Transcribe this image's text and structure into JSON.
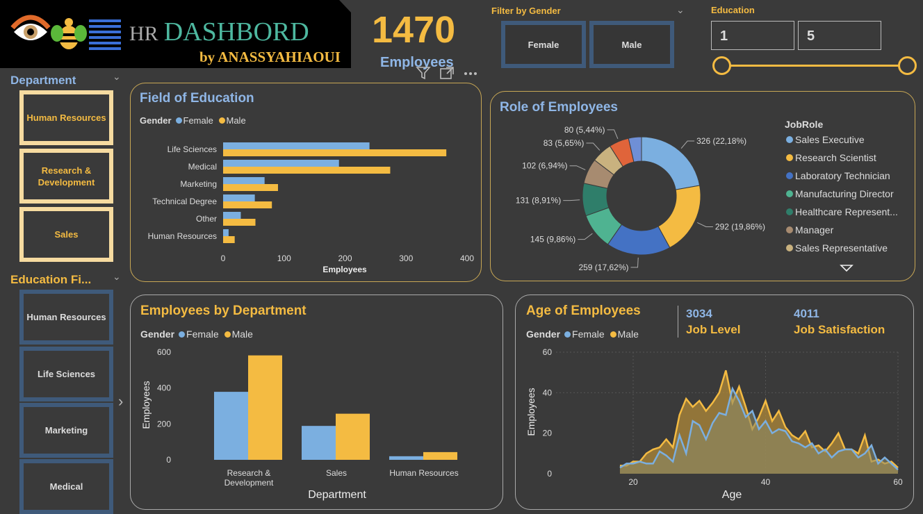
{
  "logo": {
    "hr": "HR",
    "title": "DASHBORD",
    "by": "by ANASSYAHIAOUI"
  },
  "kpi": {
    "value": "1470",
    "label": "Employees"
  },
  "gender_filter": {
    "title": "Filter by Gender",
    "options": [
      "Female",
      "Male"
    ]
  },
  "education_filter": {
    "title": "Education",
    "min": "1",
    "max": "5"
  },
  "department_slicer": {
    "title": "Department",
    "items": [
      "Human Resources",
      "Research & Development",
      "Sales"
    ]
  },
  "education_field_slicer": {
    "title": "Education Fi...",
    "items": [
      "Human Resources",
      "Life Sciences",
      "Marketing",
      "Medical"
    ]
  },
  "colors": {
    "female": "#7bafe0",
    "male": "#f4bb42",
    "accent": "#f4bb42",
    "blue_text": "#8fb6e6",
    "background": "#3a3a3a"
  },
  "field_of_education": {
    "title": "Field of Education",
    "legend_title": "Gender",
    "chart_data": {
      "type": "bar",
      "orientation": "horizontal",
      "categories": [
        "Life Sciences",
        "Medical",
        "Marketing",
        "Technical Degree",
        "Other",
        "Human Resources"
      ],
      "series": [
        {
          "name": "Female",
          "values": [
            240,
            190,
            68,
            52,
            29,
            9
          ]
        },
        {
          "name": "Male",
          "values": [
            366,
            274,
            90,
            80,
            53,
            19
          ]
        }
      ],
      "xlabel": "Employees",
      "xticks": [
        "0",
        "100",
        "200",
        "300",
        "400"
      ],
      "xlim": [
        0,
        400
      ]
    }
  },
  "role_of_employees": {
    "title": "Role of Employees",
    "legend_title": "JobRole",
    "chart_data": {
      "type": "pie",
      "slices": [
        {
          "name": "Sales Executive",
          "value": 326,
          "label": "326 (22,18%)",
          "color": "#7bafe0"
        },
        {
          "name": "Research Scientist",
          "value": 292,
          "label": "292 (19,86%)",
          "color": "#f4bb42"
        },
        {
          "name": "Laboratory Technician",
          "value": 259,
          "label": "259 (17,62%)",
          "color": "#4472c4"
        },
        {
          "name": "Manufacturing Director",
          "value": 145,
          "label": "145 (9,86%)",
          "color": "#4fb391"
        },
        {
          "name": "Healthcare Represent...",
          "value": 131,
          "label": "131 (8,91%)",
          "color": "#2f7e6a"
        },
        {
          "name": "Manager",
          "value": 102,
          "label": "102 (6,94%)",
          "color": "#a78b70"
        },
        {
          "name": "Sales Representative",
          "value": 83,
          "label": "83 (5,65%)",
          "color": "#c9b27f"
        },
        {
          "name": "",
          "value": 80,
          "label": "80 (5,44%)",
          "color": "#e0643a"
        },
        {
          "name": "",
          "value": 52,
          "label": "",
          "color": "#6f8fd6"
        }
      ]
    }
  },
  "employees_by_department": {
    "title": "Employees by Department",
    "legend_title": "Gender",
    "chart_data": {
      "type": "bar",
      "categories": [
        "Research & Development",
        "Sales",
        "Human Resources"
      ],
      "category_lines": [
        [
          "Research &",
          "Development"
        ],
        [
          "Sales"
        ],
        [
          "Human Resources"
        ]
      ],
      "series": [
        {
          "name": "Female",
          "values": [
            379,
            189,
            20
          ]
        },
        {
          "name": "Male",
          "values": [
            582,
            257,
            43
          ]
        }
      ],
      "xlabel": "Department",
      "ylabel": "Employees",
      "yticks": [
        "0",
        "200",
        "400",
        "600"
      ],
      "ylim": [
        0,
        650
      ]
    }
  },
  "age_of_employees": {
    "title": "Age of Employees",
    "legend_title": "Gender",
    "kpis": [
      {
        "value": "3034",
        "label": "Job Level"
      },
      {
        "value": "4011",
        "label": "Job Satisfaction"
      }
    ],
    "chart_data": {
      "type": "area",
      "x": [
        18,
        19,
        20,
        21,
        22,
        23,
        24,
        25,
        26,
        27,
        28,
        29,
        30,
        31,
        32,
        33,
        34,
        35,
        36,
        37,
        38,
        39,
        40,
        41,
        42,
        43,
        44,
        45,
        46,
        47,
        48,
        49,
        50,
        51,
        52,
        53,
        54,
        55,
        56,
        57,
        58,
        59,
        60
      ],
      "series": [
        {
          "name": "Female",
          "values": [
            3,
            5,
            5,
            6,
            5,
            5,
            11,
            9,
            6,
            19,
            10,
            26,
            24,
            17,
            25,
            30,
            29,
            42,
            36,
            28,
            31,
            22,
            26,
            20,
            22,
            21,
            16,
            15,
            13,
            15,
            10,
            12,
            8,
            11,
            12,
            12,
            8,
            10,
            14,
            5,
            8,
            5,
            2
          ]
        },
        {
          "name": "Male",
          "values": [
            4,
            4,
            6,
            6,
            10,
            12,
            13,
            17,
            13,
            29,
            37,
            33,
            36,
            31,
            35,
            40,
            51,
            35,
            43,
            33,
            22,
            28,
            36,
            26,
            31,
            23,
            19,
            17,
            21,
            13,
            14,
            11,
            15,
            20,
            12,
            12,
            10,
            19,
            6,
            7,
            5,
            6,
            3
          ]
        }
      ],
      "xlabel": "Age",
      "ylabel": "Employees",
      "xticks": [
        20,
        40,
        60
      ],
      "yticks": [
        0,
        20,
        40,
        60
      ],
      "xlim": [
        16,
        60
      ],
      "ylim": [
        0,
        60
      ]
    }
  }
}
